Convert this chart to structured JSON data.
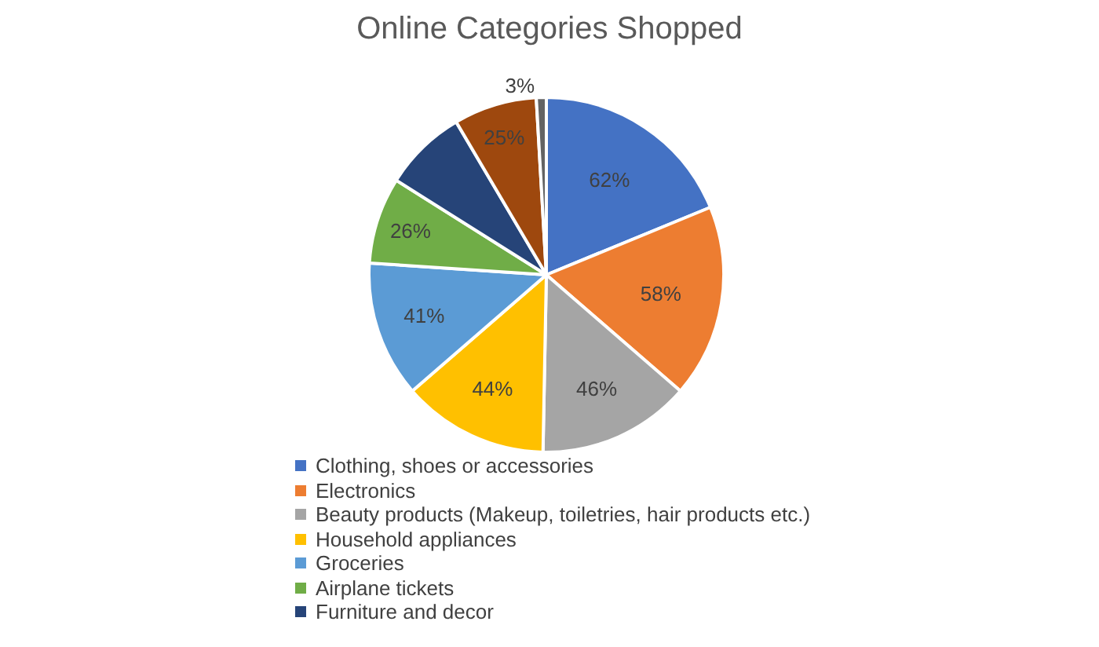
{
  "chart_data": {
    "type": "pie",
    "title": "Online Categories Shopped",
    "categories": [
      "Clothing, shoes or accessories",
      "Electronics",
      "Beauty products (Makeup, toiletries, hair products etc.)",
      "Household appliances",
      "Groceries",
      "Airplane tickets",
      "Furniture and decor",
      null,
      null
    ],
    "values": [
      62,
      58,
      46,
      44,
      41,
      26,
      25,
      25,
      3
    ],
    "value_labels": [
      "62%",
      "58%",
      "46%",
      "44%",
      "41%",
      "26%",
      null,
      "25%",
      "3%"
    ],
    "colors": [
      "#4472c4",
      "#ed7d31",
      "#a5a5a5",
      "#ffc000",
      "#5b9bd5",
      "#70ad47",
      "#264478",
      "#9e480e",
      "#636363"
    ],
    "legend": "bottom"
  }
}
